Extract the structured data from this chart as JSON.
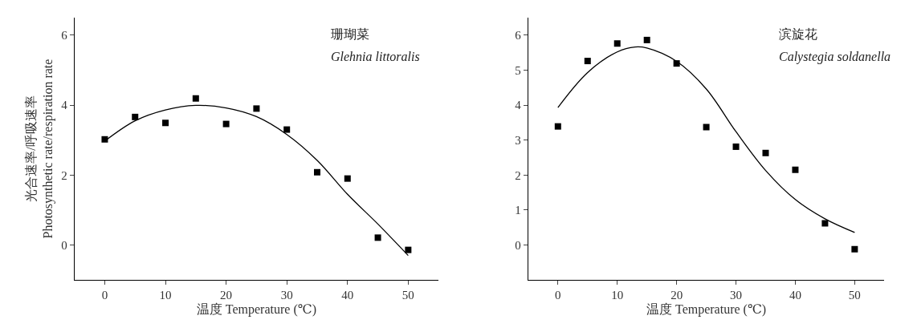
{
  "chart_data": [
    {
      "type": "scatter",
      "xlabel": "温度 Temperature (℃)",
      "ylabel": "光合速率/呼吸速率\nPhotosynthetic rate/respiration rate",
      "annotations": [
        "珊瑚菜",
        "Glehnia littoralis"
      ],
      "x": [
        0,
        5,
        10,
        15,
        20,
        25,
        30,
        35,
        40,
        45,
        50
      ],
      "xlim": [
        -5,
        55
      ],
      "xticks": [
        0,
        10,
        20,
        30,
        40,
        50
      ],
      "ylim": [
        -1,
        6.5
      ],
      "yticks": [
        0,
        2,
        4,
        6
      ],
      "series": [
        {
          "color": "#000000",
          "marker": "square",
          "values": [
            3.02,
            3.66,
            3.49,
            4.19,
            3.46,
            3.9,
            3.3,
            2.08,
            1.9,
            0.21,
            -0.14
          ]
        },
        {
          "type": "line",
          "color": "#000000",
          "x": [
            0,
            5,
            10,
            15,
            20,
            25,
            30,
            35,
            40,
            45,
            50
          ],
          "values": [
            2.97,
            3.55,
            3.86,
            3.99,
            3.92,
            3.67,
            3.16,
            2.42,
            1.45,
            0.6,
            -0.3
          ]
        }
      ]
    },
    {
      "type": "scatter",
      "xlabel": "温度 Temperature (℃)",
      "annotations": [
        "滨旋花",
        "Calystegia soldanella"
      ],
      "x": [
        0,
        5,
        10,
        15,
        20,
        25,
        30,
        35,
        40,
        45,
        50
      ],
      "xlim": [
        -5,
        55
      ],
      "xticks": [
        0,
        10,
        20,
        30,
        40,
        50
      ],
      "ylim": [
        -1,
        6.5
      ],
      "yticks": [
        0,
        1,
        2,
        3,
        4,
        5,
        6
      ],
      "series": [
        {
          "color": "#000000",
          "marker": "square",
          "values": [
            3.39,
            5.26,
            5.76,
            5.86,
            5.19,
            3.37,
            2.81,
            2.63,
            2.15,
            0.62,
            -0.12
          ]
        },
        {
          "type": "line",
          "color": "#000000",
          "x": [
            0,
            5,
            10,
            13,
            15,
            20,
            25,
            30,
            35,
            40,
            45,
            50
          ],
          "values": [
            3.93,
            4.93,
            5.52,
            5.66,
            5.63,
            5.25,
            4.46,
            3.24,
            2.13,
            1.3,
            0.75,
            0.36
          ]
        }
      ]
    }
  ]
}
